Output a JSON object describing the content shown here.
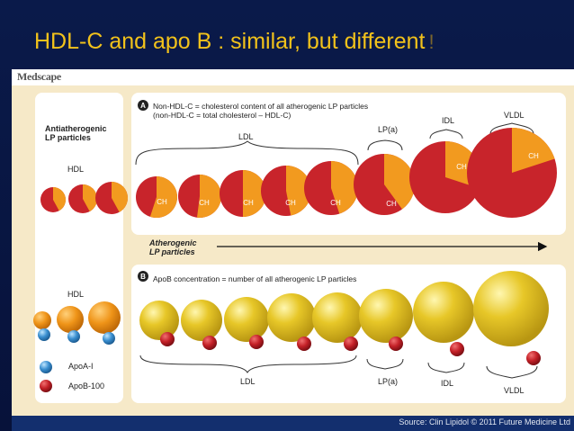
{
  "slide": {
    "title": "HDL-C and apo B : similar, but different",
    "title_mark": "!",
    "brand": "Medscape",
    "source": "Source: Clin Lipidol © 2011 Future Medicine Ltd"
  },
  "left_panel": {
    "heading_line1": "Antiatherogenic",
    "heading_line2": "LP particles",
    "hdl_top": "HDL",
    "hdl_bottom": "HDL",
    "legend": [
      {
        "label": "ApoA-I",
        "color": "#3a8fd0"
      },
      {
        "label": "ApoB-100",
        "color": "#b3202a"
      }
    ]
  },
  "panel_a": {
    "marker": "A",
    "line1": "Non-HDL-C = cholesterol content of all atherogenic LP particles",
    "line2": "(non-HDL-C = total cholesterol – HDL-C)",
    "labels": [
      "LDL",
      "LP(a)",
      "IDL",
      "VLDL"
    ],
    "slice_label": "CH"
  },
  "arrow": {
    "line1": "Atherogenic",
    "line2": "LP particles"
  },
  "panel_b": {
    "marker": "B",
    "line1": "ApoB concentration = number of all atherogenic LP particles",
    "labels": [
      "LDL",
      "LP(a)",
      "IDL",
      "VLDL"
    ]
  },
  "colors": {
    "red": "#c8242b",
    "orange": "#f29a1f",
    "gold": "#e3c21c",
    "blue": "#3a8fd0",
    "maroon": "#b3202a"
  }
}
